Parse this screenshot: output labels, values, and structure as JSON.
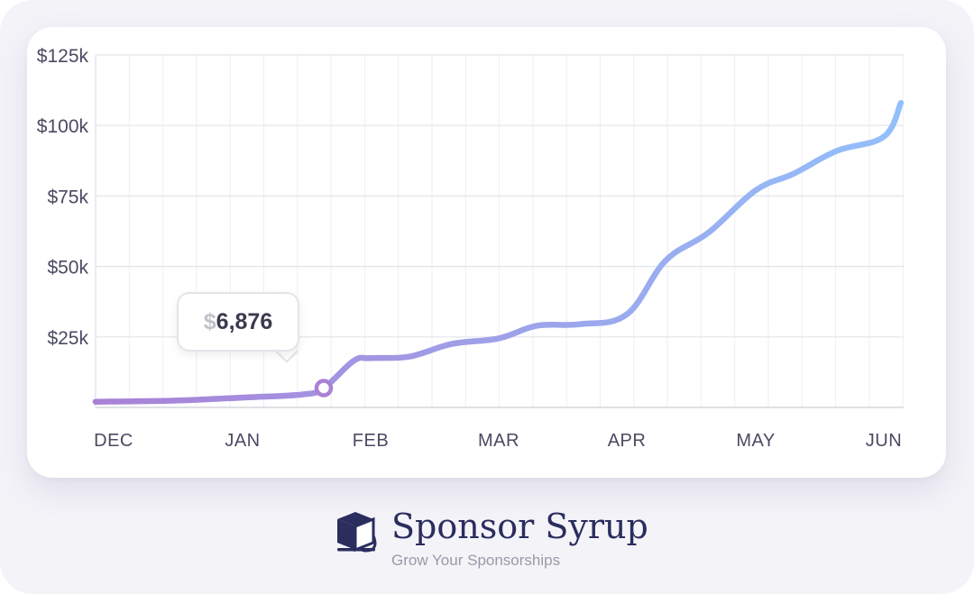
{
  "chart_data": {
    "type": "line",
    "title": "",
    "xlabel": "",
    "ylabel": "",
    "x_tick_labels": [
      "DEC",
      "JAN",
      "FEB",
      "MAR",
      "APR",
      "MAY",
      "JUN"
    ],
    "y_tick_labels": [
      "$25k",
      "$50k",
      "$75k",
      "$100k",
      "$125k"
    ],
    "y_tick_values": [
      25000,
      50000,
      75000,
      100000,
      125000
    ],
    "ylim": [
      0,
      125000
    ],
    "grid": true,
    "series": [
      {
        "values": [
          {
            "x": "Dec 1",
            "y": 2000
          },
          {
            "x": "Dec 15",
            "y": 2400
          },
          {
            "x": "Jan 1",
            "y": 3500
          },
          {
            "x": "Jan 15",
            "y": 4600
          },
          {
            "x": "Jan 20",
            "y": 6876
          },
          {
            "x": "Jan 27",
            "y": 16500
          },
          {
            "x": "Feb 1",
            "y": 17500
          },
          {
            "x": "Feb 10",
            "y": 18000
          },
          {
            "x": "Feb 20",
            "y": 22500
          },
          {
            "x": "Mar 1",
            "y": 24500
          },
          {
            "x": "Mar 10",
            "y": 29000
          },
          {
            "x": "Mar 20",
            "y": 29500
          },
          {
            "x": "Apr 1",
            "y": 33000
          },
          {
            "x": "Apr 10",
            "y": 52000
          },
          {
            "x": "Apr 20",
            "y": 62000
          },
          {
            "x": "May 1",
            "y": 77000
          },
          {
            "x": "May 10",
            "y": 83000
          },
          {
            "x": "May 20",
            "y": 91000
          },
          {
            "x": "Jun 1",
            "y": 96000
          },
          {
            "x": "Jun 5",
            "y": 108000
          }
        ]
      }
    ],
    "line_gradient": [
      "#a981d6",
      "#93c0fb"
    ],
    "highlight": {
      "x": "Jan 20",
      "value_prefix": "$",
      "value_text": "6,876"
    }
  },
  "brand": {
    "name": "Sponsor Syrup",
    "tagline": "Grow Your Sponsorships"
  }
}
